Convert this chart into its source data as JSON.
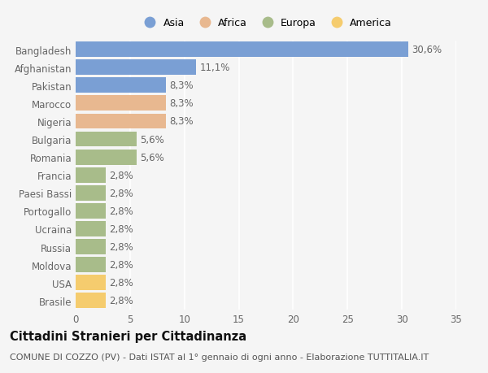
{
  "categories": [
    "Brasile",
    "USA",
    "Moldova",
    "Russia",
    "Ucraina",
    "Portogallo",
    "Paesi Bassi",
    "Francia",
    "Romania",
    "Bulgaria",
    "Nigeria",
    "Marocco",
    "Pakistan",
    "Afghanistan",
    "Bangladesh"
  ],
  "values": [
    2.8,
    2.8,
    2.8,
    2.8,
    2.8,
    2.8,
    2.8,
    2.8,
    5.6,
    5.6,
    8.3,
    8.3,
    8.3,
    11.1,
    30.6
  ],
  "colors": [
    "#f5cc6e",
    "#f5cc6e",
    "#a8bc8a",
    "#a8bc8a",
    "#a8bc8a",
    "#a8bc8a",
    "#a8bc8a",
    "#a8bc8a",
    "#a8bc8a",
    "#a8bc8a",
    "#e8b890",
    "#e8b890",
    "#7a9fd4",
    "#7a9fd4",
    "#7a9fd4"
  ],
  "labels": [
    "2,8%",
    "2,8%",
    "2,8%",
    "2,8%",
    "2,8%",
    "2,8%",
    "2,8%",
    "2,8%",
    "5,6%",
    "5,6%",
    "8,3%",
    "8,3%",
    "8,3%",
    "11,1%",
    "30,6%"
  ],
  "legend": [
    {
      "label": "Asia",
      "color": "#7a9fd4"
    },
    {
      "label": "Africa",
      "color": "#e8b890"
    },
    {
      "label": "Europa",
      "color": "#a8bc8a"
    },
    {
      "label": "America",
      "color": "#f5cc6e"
    }
  ],
  "xlim": [
    0,
    35
  ],
  "xticks": [
    0,
    5,
    10,
    15,
    20,
    25,
    30,
    35
  ],
  "title": "Cittadini Stranieri per Cittadinanza",
  "subtitle": "COMUNE DI COZZO (PV) - Dati ISTAT al 1° gennaio di ogni anno - Elaborazione TUTTITALIA.IT",
  "bg_color": "#f5f5f5",
  "bar_height": 0.85,
  "label_fontsize": 8.5,
  "tick_fontsize": 8.5,
  "title_fontsize": 10.5,
  "subtitle_fontsize": 8
}
